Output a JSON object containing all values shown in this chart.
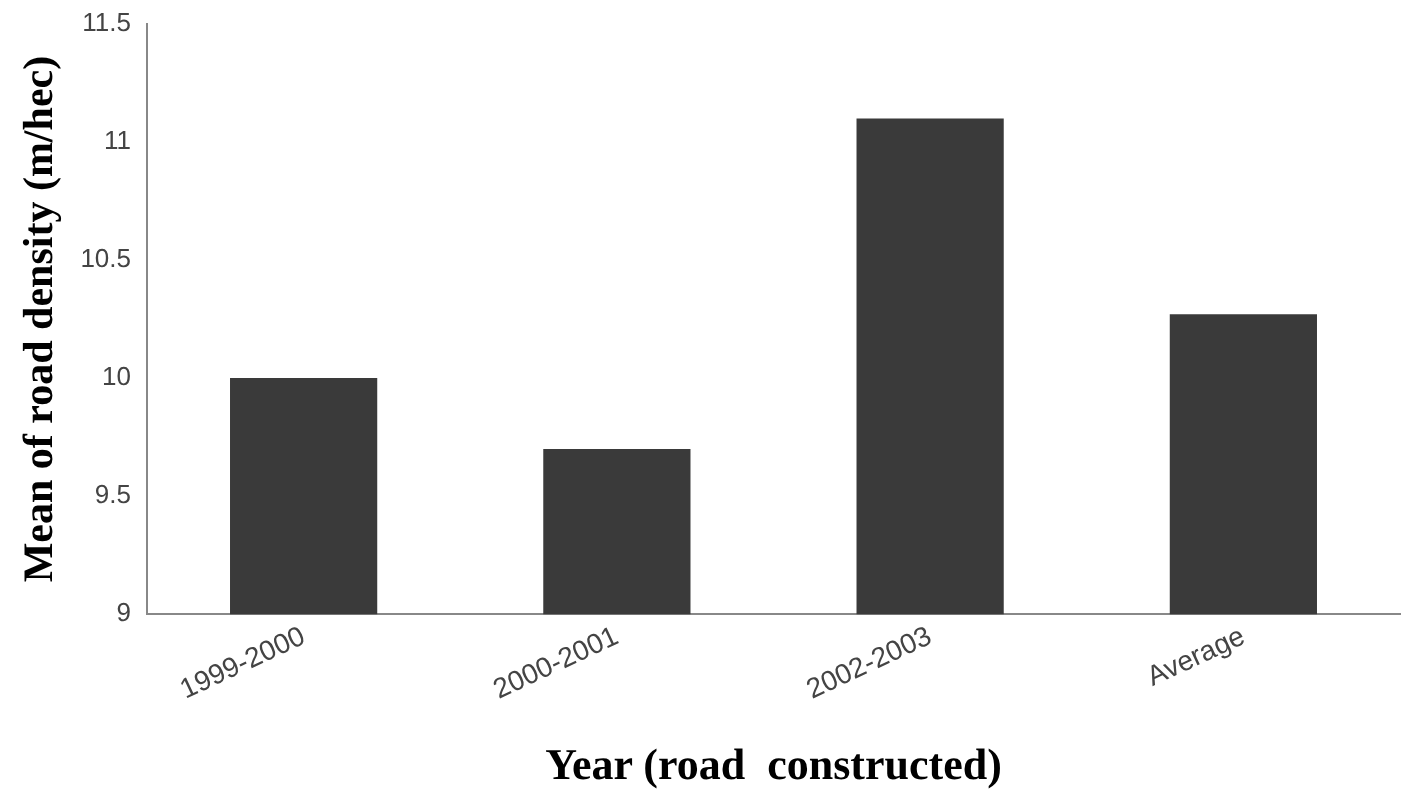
{
  "chart_data": {
    "type": "bar",
    "xlabel": "Year (road  constructed)",
    "ylabel": "Mean of road density (m/hec)",
    "categories": [
      "1999-2000",
      "2000-2001",
      "2002-2003",
      "Average"
    ],
    "values": [
      10,
      9.7,
      11.1,
      10.27
    ],
    "color": "#3a3a3a",
    "ylim": [
      9,
      11.5
    ],
    "yticks": [
      9,
      9.5,
      10,
      10.5,
      11,
      11.5
    ],
    "grid": false,
    "legend": false
  }
}
